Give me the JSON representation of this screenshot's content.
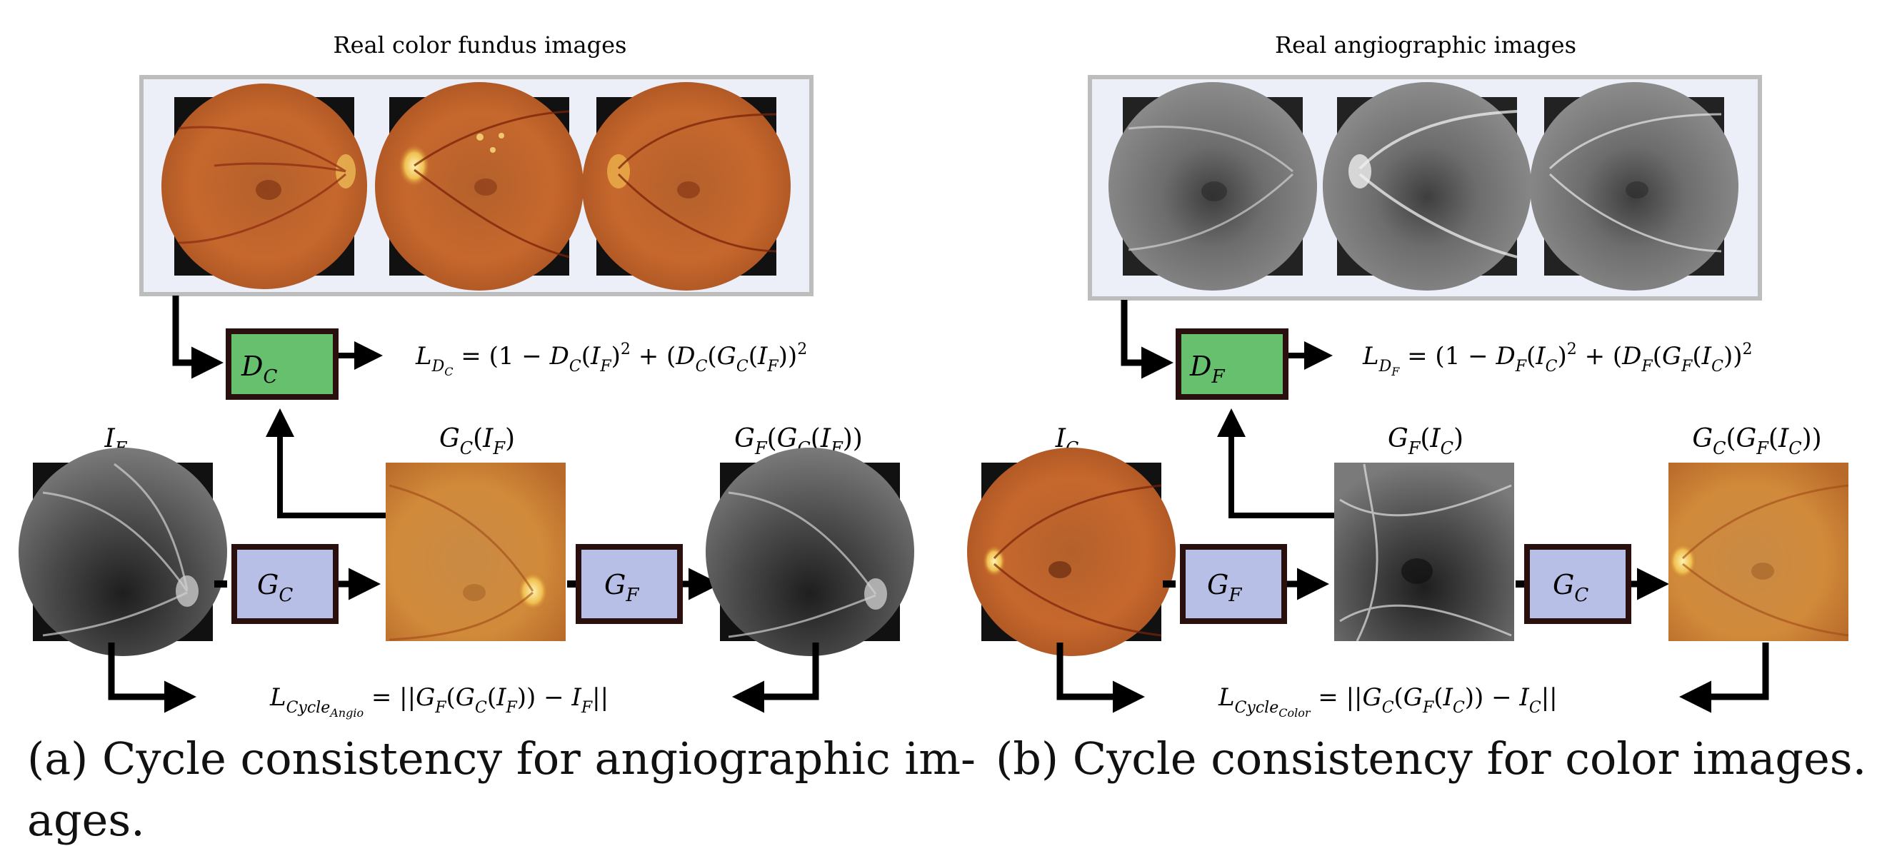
{
  "panel_a": {
    "real_images_title": "Real color fundus images",
    "discriminator_label": "D_C",
    "generator_1_label": "G_C",
    "generator_2_label": "G_F",
    "input_label": "I_F",
    "translated_label": "G_C(I_F)",
    "reconstructed_label": "G_F(G_C(I_F))",
    "disc_loss": "L_{D_C} = (1 − D_C(I_F)^2 + (D_C(G_C(I_F))^2",
    "cycle_loss": "L_{Cycle_{Angio}} = ||G_F(G_C(I_F)) − I_F||",
    "caption_line1": "(a) Cycle consistency for angiographic im-",
    "caption_line2": "ages."
  },
  "panel_b": {
    "real_images_title": "Real angiographic images",
    "discriminator_label": "D_F",
    "generator_1_label": "G_F",
    "generator_2_label": "G_C",
    "input_label": "I_C",
    "translated_label": "G_F(I_C)",
    "reconstructed_label": "G_C(G_F(I_C))",
    "disc_loss": "L_{D_F} = (1 − D_F(I_C)^2 + (D_F(G_F(I_C))^2",
    "cycle_loss": "L_{Cycle_{Color}} = ||G_C(G_F(I_C)) − I_C||",
    "caption": "(b) Cycle consistency for color images."
  },
  "colors": {
    "discriminator_fill": "#66c06e",
    "generator_fill": "#b8bfe6",
    "box_border": "#2a0f0f",
    "panel_bg": "#eceef8",
    "panel_border": "#bdbdbd",
    "fundus_color": "#c9612a",
    "angio_gray": "#7c7c7c"
  }
}
